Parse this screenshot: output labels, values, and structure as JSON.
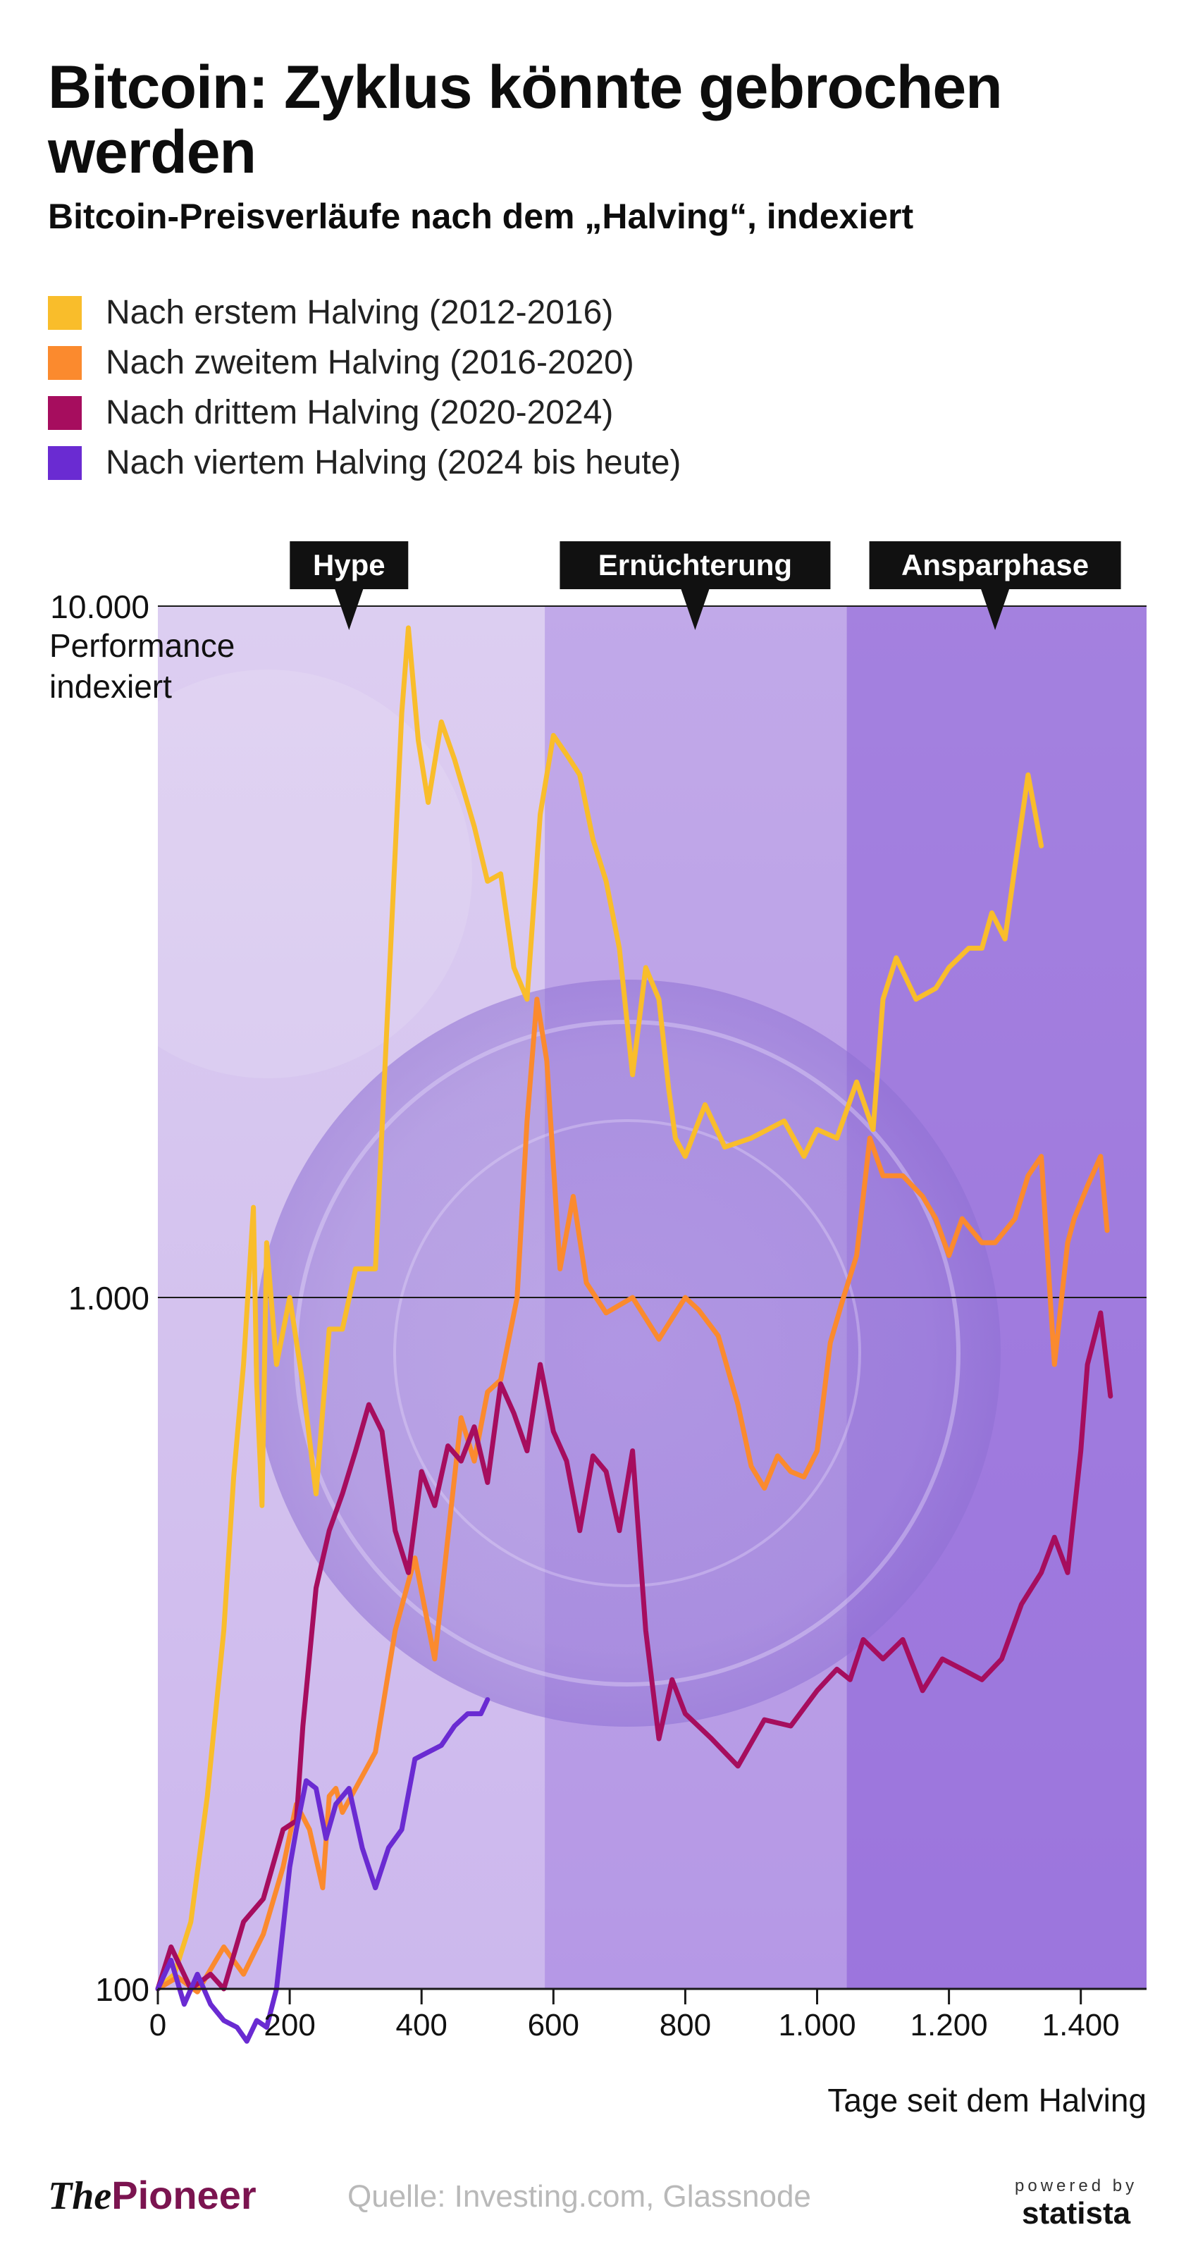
{
  "title": "Bitcoin: Zyklus könnte gebrochen werden",
  "subtitle": "Bitcoin-Preisverläufe nach dem „Halving“, indexiert",
  "legend": [
    {
      "label": "Nach erstem Halving (2012-2016)",
      "color": "#f9bd2b"
    },
    {
      "label": "Nach zweitem Halving (2016-2020)",
      "color": "#fb8a2e"
    },
    {
      "label": "Nach drittem Halving (2020-2024)",
      "color": "#a60d5e"
    },
    {
      "label": "Nach viertem Halving (2024 bis heute)",
      "color": "#6a2bd2"
    }
  ],
  "footer": {
    "brand_a": "The",
    "brand_b": "Pioneer",
    "source": "Quelle: Investing.com, Glassnode",
    "powered": "powered by",
    "statista": "statista"
  },
  "chart_data": {
    "type": "line",
    "ylabel": "Performance indexiert",
    "xlabel": "Tage seit dem Halving",
    "y_scale": "log",
    "ylim": [
      100,
      10000
    ],
    "xlim": [
      0,
      1500
    ],
    "y_ticks": [
      {
        "value": 100,
        "label": "100"
      },
      {
        "value": 1000,
        "label": "1.000"
      },
      {
        "value": 10000,
        "label": "10.000"
      }
    ],
    "x_ticks": [
      {
        "value": 0,
        "label": "0"
      },
      {
        "value": 200,
        "label": "200"
      },
      {
        "value": 400,
        "label": "400"
      },
      {
        "value": 600,
        "label": "600"
      },
      {
        "value": 800,
        "label": "800"
      },
      {
        "value": 1000,
        "label": "1.000"
      },
      {
        "value": 1200,
        "label": "1.200"
      },
      {
        "value": 1400,
        "label": "1.400"
      }
    ],
    "phases": [
      {
        "label": "Hype",
        "from": 0,
        "to": 587,
        "marker": 290
      },
      {
        "label": "Ernüchterung",
        "from": 587,
        "to": 1045,
        "marker": 815
      },
      {
        "label": "Ansparphase",
        "from": 1045,
        "to": 1500,
        "marker": 1270
      }
    ],
    "series": [
      {
        "name": "Nach erstem Halving (2012-2016)",
        "color": "#f9bd2b",
        "x": [
          0,
          25,
          50,
          75,
          100,
          115,
          130,
          145,
          150,
          158,
          165,
          180,
          200,
          220,
          240,
          260,
          280,
          300,
          330,
          355,
          370,
          380,
          395,
          410,
          430,
          450,
          480,
          500,
          520,
          540,
          560,
          580,
          600,
          620,
          640,
          660,
          680,
          700,
          720,
          740,
          760,
          775,
          785,
          800,
          830,
          860,
          900,
          950,
          980,
          1000,
          1030,
          1060,
          1085,
          1100,
          1120,
          1150,
          1180,
          1200,
          1230,
          1250,
          1265,
          1285,
          1300,
          1320,
          1340
        ],
        "y": [
          100,
          105,
          125,
          190,
          330,
          550,
          800,
          1350,
          750,
          500,
          1200,
          800,
          1000,
          750,
          520,
          900,
          900,
          1100,
          1100,
          3500,
          7000,
          9300,
          6400,
          5200,
          6800,
          6000,
          4800,
          4000,
          4100,
          3000,
          2700,
          5000,
          6500,
          6100,
          5700,
          4600,
          4000,
          3200,
          2100,
          3000,
          2700,
          2000,
          1700,
          1600,
          1900,
          1650,
          1700,
          1800,
          1600,
          1750,
          1700,
          2050,
          1750,
          2700,
          3100,
          2700,
          2800,
          3000,
          3200,
          3200,
          3600,
          3300,
          4200,
          5700,
          4500
        ]
      },
      {
        "name": "Nach zweitem Halving (2016-2020)",
        "color": "#fb8a2e",
        "x": [
          0,
          30,
          60,
          100,
          130,
          160,
          190,
          210,
          230,
          250,
          260,
          270,
          280,
          300,
          330,
          360,
          390,
          420,
          440,
          460,
          480,
          500,
          520,
          545,
          560,
          575,
          590,
          610,
          630,
          650,
          680,
          720,
          760,
          800,
          820,
          850,
          880,
          900,
          920,
          940,
          960,
          980,
          1000,
          1020,
          1040,
          1060,
          1080,
          1100,
          1130,
          1160,
          1180,
          1200,
          1220,
          1250,
          1270,
          1300,
          1320,
          1340,
          1360,
          1380,
          1390,
          1410,
          1430,
          1440
        ],
        "y": [
          100,
          104,
          99,
          115,
          105,
          120,
          150,
          185,
          170,
          140,
          190,
          195,
          180,
          195,
          220,
          330,
          420,
          300,
          450,
          670,
          580,
          730,
          760,
          1000,
          1800,
          2700,
          2200,
          1100,
          1400,
          1050,
          950,
          1000,
          870,
          1000,
          960,
          880,
          700,
          570,
          530,
          590,
          560,
          550,
          600,
          860,
          1000,
          1150,
          1700,
          1500,
          1500,
          1400,
          1300,
          1150,
          1300,
          1200,
          1200,
          1300,
          1500,
          1600,
          800,
          1200,
          1300,
          1450,
          1600,
          1250
        ]
      },
      {
        "name": "Nach drittem Halving (2020-2024)",
        "color": "#a60d5e",
        "x": [
          0,
          20,
          50,
          80,
          100,
          130,
          160,
          190,
          210,
          220,
          240,
          260,
          280,
          300,
          320,
          340,
          360,
          380,
          400,
          420,
          440,
          460,
          480,
          500,
          520,
          540,
          560,
          580,
          600,
          620,
          640,
          660,
          680,
          700,
          720,
          740,
          760,
          780,
          800,
          840,
          880,
          920,
          960,
          1000,
          1030,
          1050,
          1070,
          1100,
          1130,
          1160,
          1190,
          1220,
          1250,
          1280,
          1310,
          1340,
          1360,
          1380,
          1400,
          1410,
          1430,
          1445
        ],
        "y": [
          100,
          115,
          100,
          105,
          100,
          125,
          135,
          170,
          175,
          240,
          380,
          460,
          520,
          600,
          700,
          640,
          460,
          400,
          560,
          500,
          610,
          580,
          650,
          540,
          750,
          680,
          600,
          800,
          640,
          580,
          460,
          590,
          560,
          460,
          600,
          330,
          230,
          280,
          250,
          230,
          210,
          245,
          240,
          270,
          290,
          280,
          320,
          300,
          320,
          270,
          300,
          290,
          280,
          300,
          360,
          400,
          450,
          400,
          600,
          800,
          950,
          720
        ]
      },
      {
        "name": "Nach viertem Halving (2024 bis heute)",
        "color": "#6a2bd2",
        "x": [
          0,
          20,
          40,
          60,
          80,
          100,
          120,
          135,
          150,
          165,
          180,
          200,
          210,
          225,
          240,
          255,
          270,
          290,
          310,
          330,
          350,
          370,
          390,
          410,
          430,
          450,
          470,
          490,
          500
        ],
        "y": [
          100,
          110,
          95,
          105,
          95,
          90,
          88,
          84,
          90,
          88,
          100,
          150,
          170,
          200,
          195,
          165,
          185,
          195,
          160,
          140,
          160,
          170,
          215,
          220,
          225,
          240,
          250,
          250,
          262
        ]
      }
    ]
  }
}
